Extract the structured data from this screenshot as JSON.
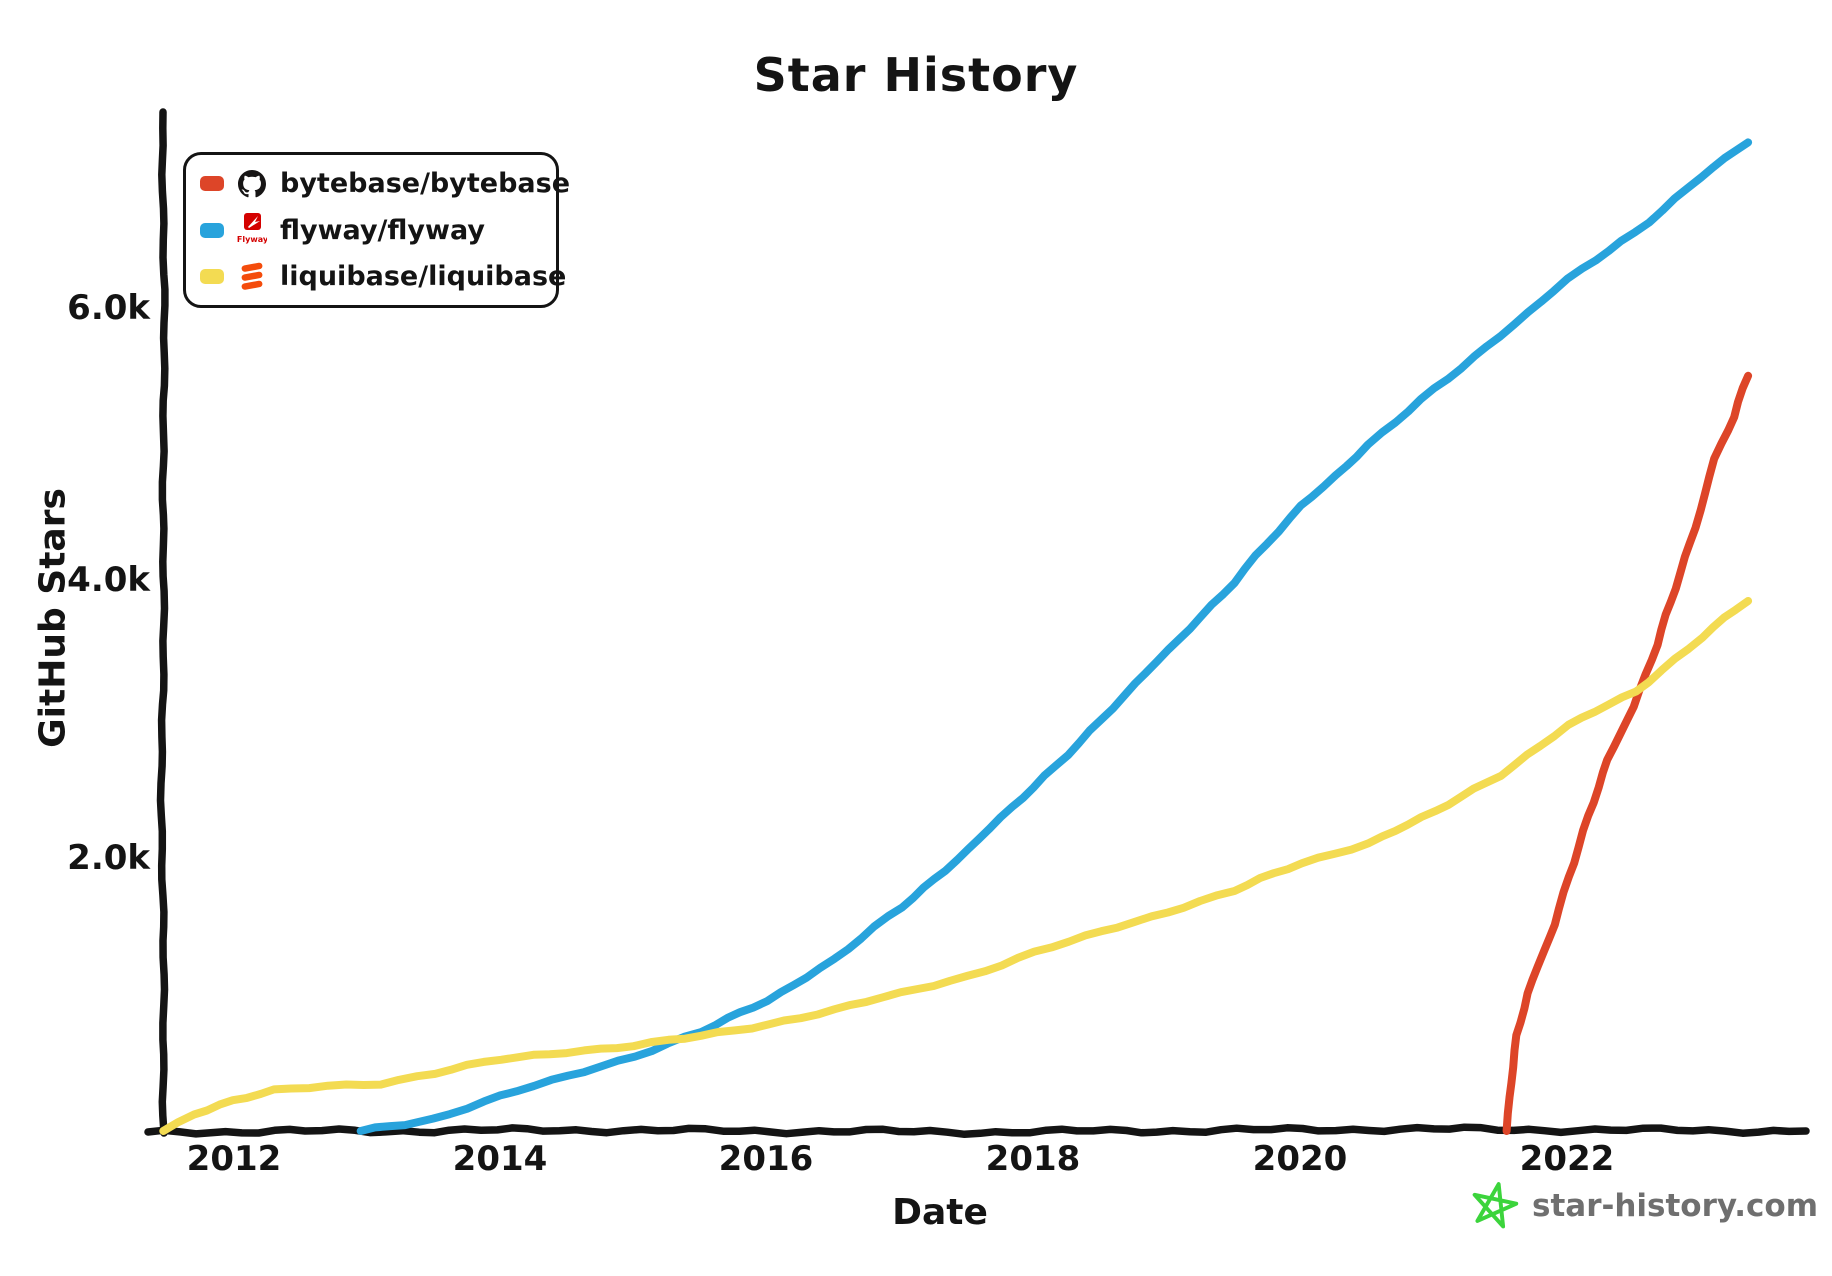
{
  "title": "Star History",
  "axes": {
    "x_label": "Date",
    "y_label": "GitHub Stars",
    "x_ticks": [
      "2012",
      "2014",
      "2016",
      "2018",
      "2020",
      "2022"
    ],
    "y_ticks": [
      "6.0k",
      "4.0k",
      "2.0k"
    ]
  },
  "legend": {
    "items": [
      {
        "label": "bytebase/bytebase",
        "color": "#dd4528",
        "icon": "github-mark-icon"
      },
      {
        "label": "flyway/flyway",
        "color": "#28a3dc",
        "icon": "flyway-logo-icon"
      },
      {
        "label": "liquibase/liquibase",
        "color": "#f3db52",
        "icon": "liquibase-logo-icon"
      }
    ]
  },
  "watermark": {
    "text": "star-history.com",
    "icon": "sketched-star-icon",
    "icon_color": "#3cd43c",
    "text_color": "#6f6f6f"
  },
  "colors": {
    "bytebase": "#dd4528",
    "flyway": "#28a3dc",
    "liquibase": "#f3db52",
    "axis": "#141414",
    "flyway_logo_red": "#d40100",
    "liquibase_logo_orange": "#f44c0c"
  },
  "chart_data": {
    "type": "line",
    "title": "Star History",
    "xlabel": "Date",
    "ylabel": "GitHub Stars",
    "grid": false,
    "legend_position": "top-left",
    "x_axis": {
      "unit": "year",
      "range": [
        2011.45,
        2023.8
      ],
      "ticks": [
        2012,
        2014,
        2016,
        2018,
        2020,
        2022
      ]
    },
    "y_axis": {
      "unit": "GitHub stars",
      "range": [
        0,
        7400
      ],
      "ticks": [
        2000,
        4000,
        6000
      ],
      "tick_labels": [
        "2.0k",
        "4.0k",
        "6.0k"
      ]
    },
    "series": [
      {
        "name": "bytebase/bytebase",
        "color": "#dd4528",
        "points": [
          [
            2021.54,
            0
          ],
          [
            2021.57,
            350
          ],
          [
            2021.62,
            700
          ],
          [
            2021.7,
            1000
          ],
          [
            2021.78,
            1200
          ],
          [
            2021.9,
            1500
          ],
          [
            2022.0,
            1850
          ],
          [
            2022.15,
            2300
          ],
          [
            2022.3,
            2700
          ],
          [
            2022.5,
            3100
          ],
          [
            2022.67,
            3550
          ],
          [
            2022.8,
            3950
          ],
          [
            2022.95,
            4400
          ],
          [
            2023.1,
            4900
          ],
          [
            2023.25,
            5200
          ],
          [
            2023.35,
            5500
          ]
        ]
      },
      {
        "name": "flyway/flyway",
        "color": "#28a3dc",
        "points": [
          [
            2012.95,
            0
          ],
          [
            2013.5,
            90
          ],
          [
            2014.0,
            250
          ],
          [
            2014.5,
            400
          ],
          [
            2015.0,
            550
          ],
          [
            2015.5,
            720
          ],
          [
            2016.0,
            950
          ],
          [
            2016.5,
            1250
          ],
          [
            2017.0,
            1630
          ],
          [
            2017.5,
            2050
          ],
          [
            2018.0,
            2500
          ],
          [
            2018.5,
            3000
          ],
          [
            2019.0,
            3500
          ],
          [
            2019.5,
            4000
          ],
          [
            2020.0,
            4550
          ],
          [
            2020.5,
            5000
          ],
          [
            2021.0,
            5400
          ],
          [
            2021.5,
            5800
          ],
          [
            2022.0,
            6200
          ],
          [
            2022.5,
            6550
          ],
          [
            2023.0,
            6950
          ],
          [
            2023.35,
            7200
          ]
        ]
      },
      {
        "name": "liquibase/liquibase",
        "color": "#f3db52",
        "points": [
          [
            2011.47,
            0
          ],
          [
            2011.7,
            130
          ],
          [
            2012.0,
            220
          ],
          [
            2012.3,
            290
          ],
          [
            2012.7,
            330
          ],
          [
            2013.1,
            350
          ],
          [
            2013.5,
            420
          ],
          [
            2014.0,
            520
          ],
          [
            2014.5,
            580
          ],
          [
            2015.0,
            620
          ],
          [
            2015.5,
            690
          ],
          [
            2016.0,
            780
          ],
          [
            2016.5,
            880
          ],
          [
            2017.0,
            1000
          ],
          [
            2017.5,
            1130
          ],
          [
            2018.0,
            1300
          ],
          [
            2018.5,
            1450
          ],
          [
            2019.0,
            1600
          ],
          [
            2019.5,
            1750
          ],
          [
            2020.0,
            1950
          ],
          [
            2020.5,
            2100
          ],
          [
            2021.0,
            2320
          ],
          [
            2021.5,
            2600
          ],
          [
            2022.0,
            2950
          ],
          [
            2022.5,
            3200
          ],
          [
            2023.0,
            3600
          ],
          [
            2023.35,
            3860
          ]
        ]
      }
    ]
  }
}
